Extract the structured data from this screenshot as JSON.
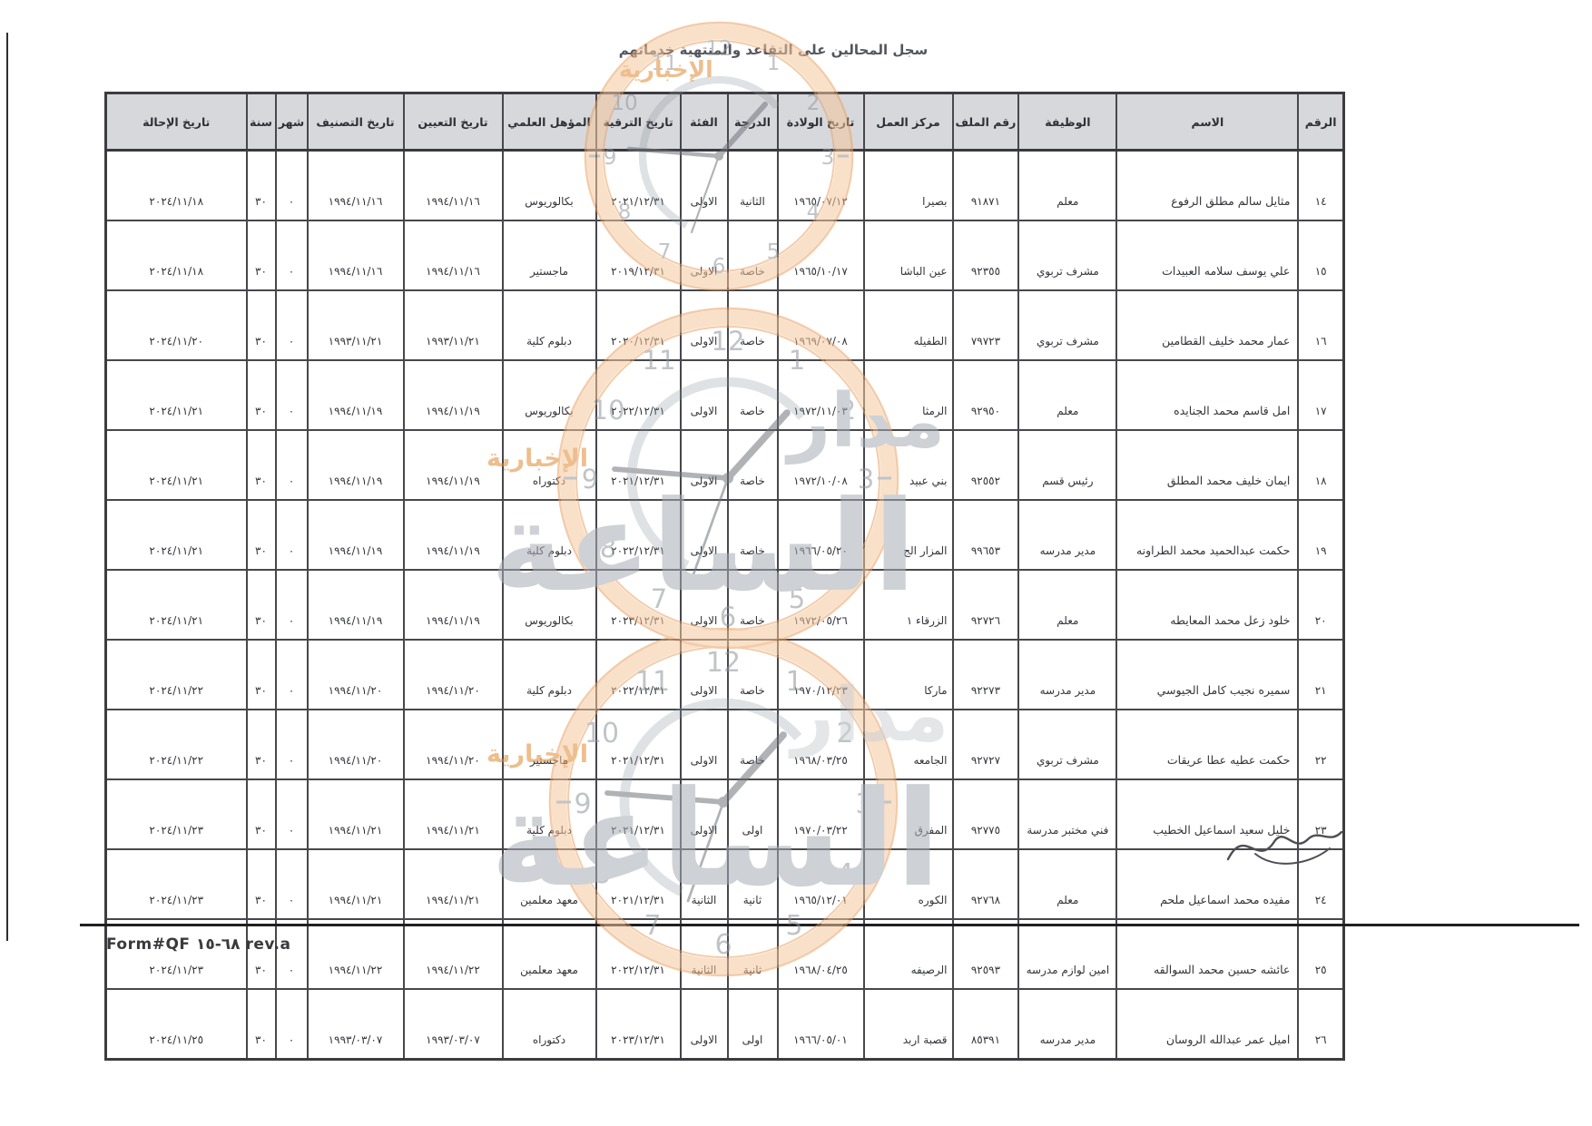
{
  "document": {
    "title": "سجل المحالين على التقاعد والمنتهية خدماتهم",
    "footer_form_code": "Form#QF ٦٨-١٥ rev.a"
  },
  "watermark": {
    "brand_word_1": "مدار",
    "brand_word_2": "الساعة",
    "brand_word_3": "الإخبارية",
    "clock_numbers": [
      "12",
      "1",
      "2",
      "3",
      "4",
      "5",
      "6",
      "7",
      "8",
      "9",
      "10",
      "11"
    ],
    "ring_color": "#f5c79e",
    "ring_edge_color": "#eaa263",
    "brand_gray": "#a7acb3",
    "brand_orange": "#e08a33"
  },
  "table": {
    "columns": [
      {
        "id": "num",
        "label": "الرقم"
      },
      {
        "id": "name",
        "label": "الاسم"
      },
      {
        "id": "job",
        "label": "الوظيفة"
      },
      {
        "id": "file_no",
        "label": "رقم الملف"
      },
      {
        "id": "work_center",
        "label": "مركز العمل"
      },
      {
        "id": "birth_date",
        "label": "تاريخ الولادة"
      },
      {
        "id": "grade",
        "label": "الدرجة"
      },
      {
        "id": "category",
        "label": "الفئة"
      },
      {
        "id": "promotion_date",
        "label": "تاريخ الترقية"
      },
      {
        "id": "qualification",
        "label": "المؤهل العلمي"
      },
      {
        "id": "appointment_date",
        "label": "تاريخ التعيين"
      },
      {
        "id": "classification_date",
        "label": "تاريخ التصنيف"
      },
      {
        "id": "month",
        "label": "شهر"
      },
      {
        "id": "year",
        "label": "سنة"
      },
      {
        "id": "referral_date",
        "label": "تاريخ الإحالة"
      }
    ],
    "rows": [
      [
        "١٤",
        "مثايل سالم مطلق الرفوع",
        "معلم",
        "٩١٨٧١",
        "بصيرا",
        "١٩٦٥/٠٧/١٢",
        "الثانية",
        "الاولى",
        "٢٠٢١/١٢/٣١",
        "بكالوريوس",
        "١٩٩٤/١١/١٦",
        "١٩٩٤/١١/١٦",
        "٠",
        "٣٠",
        "٢٠٢٤/١١/١٨"
      ],
      [
        "١٥",
        "علي يوسف سلامه العبيدات",
        "مشرف تربوي",
        "٩٢٣٥٥",
        "عين الباشا",
        "١٩٦٥/١٠/١٧",
        "خاصة",
        "الاولى",
        "٢٠١٩/١٢/٣١",
        "ماجستير",
        "١٩٩٤/١١/١٦",
        "١٩٩٤/١١/١٦",
        "٠",
        "٣٠",
        "٢٠٢٤/١١/١٨"
      ],
      [
        "١٦",
        "عمار محمد خليف القطامين",
        "مشرف تربوي",
        "٧٩٧٢٣",
        "الطفيله",
        "١٩٦٩/٠٧/٠٨",
        "خاصة",
        "الاولى",
        "٢٠٢٠/١٢/٣١",
        "دبلوم كلية",
        "١٩٩٣/١١/٢١",
        "١٩٩٣/١١/٢١",
        "٠",
        "٣٠",
        "٢٠٢٤/١١/٢٠"
      ],
      [
        "١٧",
        "امل قاسم محمد الجنايده",
        "معلم",
        "٩٢٩٥٠",
        "الرمثا",
        "١٩٧٢/١١/٠٣",
        "خاصة",
        "الاولى",
        "٢٠٢٢/١٢/٣١",
        "بكالوريوس",
        "١٩٩٤/١١/١٩",
        "١٩٩٤/١١/١٩",
        "٠",
        "٣٠",
        "٢٠٢٤/١١/٢١"
      ],
      [
        "١٨",
        "ايمان خليف محمد المطلق",
        "رئيس قسم",
        "٩٢٥٥٢",
        "بني عبيد",
        "١٩٧٢/١٠/٠٨",
        "خاصة",
        "الاولى",
        "٢٠٢١/١٢/٣١",
        "دكتوراه",
        "١٩٩٤/١١/١٩",
        "١٩٩٤/١١/١٩",
        "٠",
        "٣٠",
        "٢٠٢٤/١١/٢١"
      ],
      [
        "١٩",
        "حكمت عبدالحميد محمد الطراونه",
        "مدير مدرسه",
        "٩٩٦٥٣",
        "المزار الج",
        "١٩٦٦/٠٥/٢٠",
        "خاصة",
        "الاولى",
        "٢٠٢٢/١٢/٣١",
        "دبلوم كلية",
        "١٩٩٤/١١/١٩",
        "١٩٩٤/١١/١٩",
        "٠",
        "٣٠",
        "٢٠٢٤/١١/٢١"
      ],
      [
        "٢٠",
        "خلود زعل محمد المعايطه",
        "معلم",
        "٩٢٧٢٦",
        "الزرقاء ١",
        "١٩٧٢/٠٥/٢٦",
        "خاصة",
        "الاولى",
        "٢٠٢٣/١٢/٣١",
        "بكالوريوس",
        "١٩٩٤/١١/١٩",
        "١٩٩٤/١١/١٩",
        "٠",
        "٣٠",
        "٢٠٢٤/١١/٢١"
      ],
      [
        "٢١",
        "سميره نجيب كامل الجيوسي",
        "مدير مدرسه",
        "٩٢٢٧٣",
        "ماركا",
        "١٩٧٠/١٢/٢٣",
        "خاصة",
        "الاولى",
        "٢٠٢٢/١٢/٣١",
        "دبلوم كلية",
        "١٩٩٤/١١/٢٠",
        "١٩٩٤/١١/٢٠",
        "٠",
        "٣٠",
        "٢٠٢٤/١١/٢٢"
      ],
      [
        "٢٢",
        "حكمت عطيه عطا عريقات",
        "مشرف تربوي",
        "٩٢٧٢٧",
        "الجامعه",
        "١٩٦٨/٠٣/٢٥",
        "خاصة",
        "الاولى",
        "٢٠٢١/١٢/٣١",
        "ماجستير",
        "١٩٩٤/١١/٢٠",
        "١٩٩٤/١١/٢٠",
        "٠",
        "٣٠",
        "٢٠٢٤/١١/٢٢"
      ],
      [
        "٢٣",
        "خليل سعيد اسماعيل الخطيب",
        "فني مختبر مدرسة",
        "٩٢٧٧٥",
        "المفرق",
        "١٩٧٠/٠٣/٢٢",
        "اولى",
        "الاولى",
        "٢٠٢١/١٢/٣١",
        "دبلوم كلية",
        "١٩٩٤/١١/٢١",
        "١٩٩٤/١١/٢١",
        "٠",
        "٣٠",
        "٢٠٢٤/١١/٢٣"
      ],
      [
        "٢٤",
        "مفيده محمد اسماعيل ملحم",
        "معلم",
        "٩٢٧٦٨",
        "الكوره",
        "١٩٦٥/١٢/٠١",
        "ثانية",
        "الثانية",
        "٢٠٢١/١٢/٣١",
        "معهد معلمين",
        "١٩٩٤/١١/٢١",
        "١٩٩٤/١١/٢١",
        "٠",
        "٣٠",
        "٢٠٢٤/١١/٢٣"
      ],
      [
        "٢٥",
        "عائشه حسين محمد السوالقه",
        "امين لوازم مدرسه",
        "٩٢٥٩٣",
        "الرصيفه",
        "١٩٦٨/٠٤/٢٥",
        "ثانية",
        "الثانية",
        "٢٠٢٢/١٢/٣١",
        "معهد معلمين",
        "١٩٩٤/١١/٢٢",
        "١٩٩٤/١١/٢٢",
        "٠",
        "٣٠",
        "٢٠٢٤/١١/٢٣"
      ],
      [
        "٢٦",
        "اميل عمر عبدالله الروسان",
        "مدير مدرسه",
        "٨٥٣٩١",
        "قصبة اربد",
        "١٩٦٦/٠٥/٠١",
        "اولى",
        "الاولى",
        "٢٠٢٣/١٢/٣١",
        "دكتوراه",
        "١٩٩٣/٠٣/٠٧",
        "١٩٩٣/٠٣/٠٧",
        "٠",
        "٣٠",
        "٢٠٢٤/١١/٢٥"
      ]
    ]
  }
}
